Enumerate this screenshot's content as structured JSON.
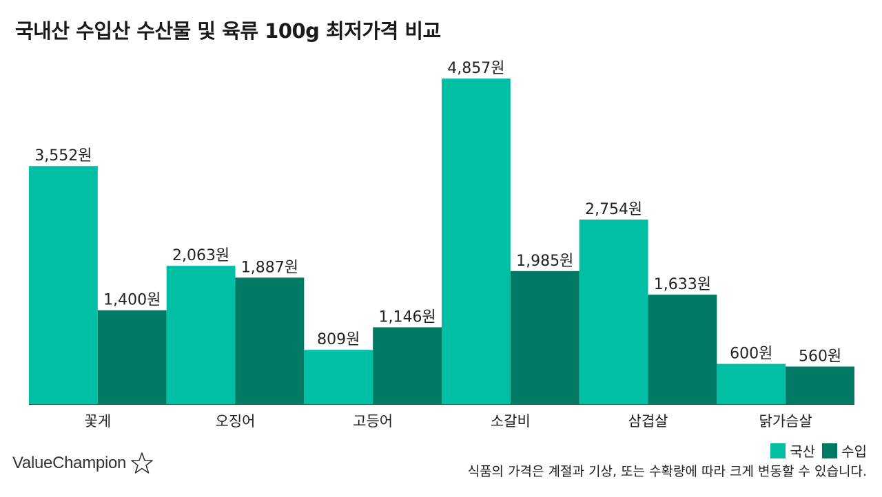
{
  "chart_data": {
    "type": "bar",
    "title": "국내산 수입산 수산물 및 육류 100g 최저가격 비교",
    "categories": [
      "꽃게",
      "오징어",
      "고등어",
      "소갈비",
      "삼겹살",
      "닭가슴살"
    ],
    "series": [
      {
        "name": "국산",
        "values": [
          3552,
          2063,
          809,
          4857,
          2754,
          600
        ],
        "color": "#00bfa5"
      },
      {
        "name": "수입",
        "values": [
          1400,
          1887,
          1146,
          1985,
          1633,
          560
        ],
        "color": "#007a64"
      }
    ],
    "value_labels": [
      [
        "3,552원",
        "2,063원",
        "809원",
        "4,857원",
        "2,754원",
        "600원"
      ],
      [
        "1,400원",
        "1,887원",
        "1,146원",
        "1,985원",
        "1,633원",
        "560원"
      ]
    ],
    "ylim": [
      0,
      4900
    ],
    "xlabel": "",
    "ylabel": "",
    "grid": false,
    "legend_position": "bottom-right"
  },
  "footnote": "식품의 가격은 계절과 기상, 또는 수확량에 따라 크게 변동할 수 있습니다.",
  "brand": {
    "name": "ValueChampion",
    "logo_icon": "star-outline-icon"
  }
}
